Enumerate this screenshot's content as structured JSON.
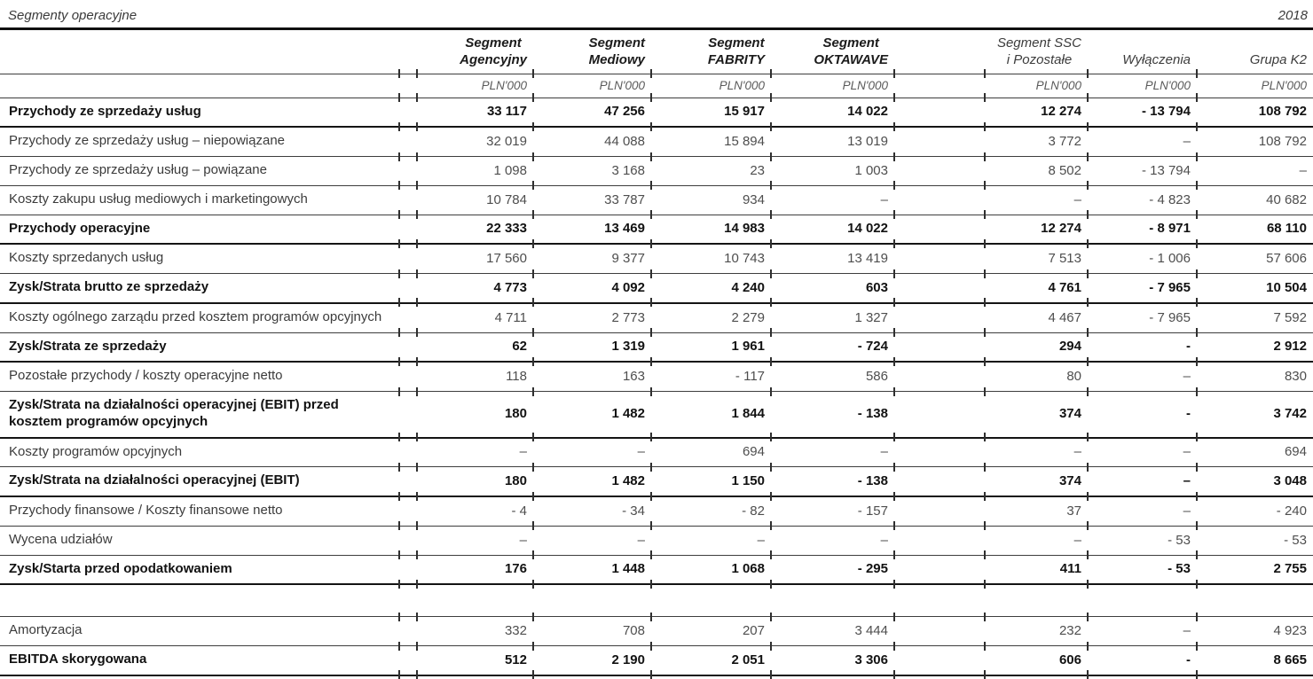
{
  "meta": {
    "title": "Segmenty operacyjne",
    "year": "2018"
  },
  "table": {
    "columns": [
      {
        "label": "Segment\nAgencyjny",
        "unit": "PLN'000"
      },
      {
        "label": "Segment\nMediowy",
        "unit": "PLN'000"
      },
      {
        "label": "Segment\nFABRITY",
        "unit": "PLN'000"
      },
      {
        "label": "Segment\nOKTAWAVE",
        "unit": "PLN'000"
      },
      {
        "label": "Segment SSC\ni Pozostałe",
        "unit": "PLN'000"
      },
      {
        "label": "Wyłączenia",
        "unit": "PLN'000"
      },
      {
        "label": "Grupa K2",
        "unit": "PLN'000"
      }
    ],
    "rows": [
      {
        "label": "Przychody ze sprzedaży usług",
        "bold": true,
        "values": [
          "33 117",
          "47 256",
          "15 917",
          "14 022",
          "12 274",
          "- 13 794",
          "108 792"
        ]
      },
      {
        "label": "Przychody ze sprzedaży usług – niepowiązane",
        "bold": false,
        "values": [
          "32 019",
          "44 088",
          "15 894",
          "13 019",
          "3 772",
          "–",
          "108 792"
        ]
      },
      {
        "label": "Przychody ze sprzedaży usług – powiązane",
        "bold": false,
        "values": [
          "1 098",
          "3 168",
          "23",
          "1 003",
          "8 502",
          "- 13 794",
          "–"
        ]
      },
      {
        "label": "Koszty zakupu usług mediowych i marketingowych",
        "bold": false,
        "values": [
          "10 784",
          "33 787",
          "934",
          "–",
          "–",
          "- 4 823",
          "40 682"
        ]
      },
      {
        "label": "Przychody operacyjne",
        "bold": true,
        "values": [
          "22 333",
          "13 469",
          "14 983",
          "14 022",
          "12 274",
          "- 8 971",
          "68 110"
        ]
      },
      {
        "label": "Koszty sprzedanych usług",
        "bold": false,
        "values": [
          "17 560",
          "9 377",
          "10 743",
          "13 419",
          "7 513",
          "- 1 006",
          "57 606"
        ]
      },
      {
        "label": "Zysk/Strata brutto ze sprzedaży",
        "bold": true,
        "values": [
          "4 773",
          "4 092",
          "4 240",
          "603",
          "4 761",
          "- 7 965",
          "10 504"
        ]
      },
      {
        "label": "Koszty ogólnego zarządu przed kosztem programów opcyjnych",
        "bold": false,
        "values": [
          "4 711",
          "2 773",
          "2 279",
          "1 327",
          "4 467",
          "- 7 965",
          "7 592"
        ]
      },
      {
        "label": "Zysk/Strata ze sprzedaży",
        "bold": true,
        "values": [
          "62",
          "1 319",
          "1 961",
          "- 724",
          "294",
          "-",
          "2 912"
        ]
      },
      {
        "label": "Pozostałe przychody / koszty operacyjne netto",
        "bold": false,
        "values": [
          "118",
          "163",
          "- 117",
          "586",
          "80",
          "–",
          "830"
        ]
      },
      {
        "label": "Zysk/Strata na działalności operacyjnej (EBIT) przed kosztem programów opcyjnych",
        "bold": true,
        "values": [
          "180",
          "1 482",
          "1 844",
          "- 138",
          "374",
          "-",
          "3 742"
        ]
      },
      {
        "label": "Koszty programów opcyjnych",
        "bold": false,
        "values": [
          "–",
          "–",
          "694",
          "–",
          "–",
          "–",
          "694"
        ]
      },
      {
        "label": "Zysk/Strata na działalności operacyjnej (EBIT)",
        "bold": true,
        "values": [
          "180",
          "1 482",
          "1 150",
          "- 138",
          "374",
          "–",
          "3 048"
        ]
      },
      {
        "label": "Przychody finansowe / Koszty finansowe netto",
        "bold": false,
        "values": [
          "- 4",
          "- 34",
          "- 82",
          "- 157",
          "37",
          "–",
          "- 240"
        ]
      },
      {
        "label": "Wycena udziałów",
        "bold": false,
        "values": [
          "–",
          "–",
          "–",
          "–",
          "–",
          "- 53",
          "- 53"
        ]
      },
      {
        "label": "Zysk/Starta przed opodatkowaniem",
        "bold": true,
        "values": [
          "176",
          "1 448",
          "1 068",
          "- 295",
          "411",
          "- 53",
          "2 755"
        ]
      },
      {
        "label": "",
        "bold": false,
        "spacer": true,
        "values": [
          "",
          "",
          "",
          "",
          "",
          "",
          ""
        ]
      },
      {
        "label": "Amortyzacja",
        "bold": false,
        "values": [
          "332",
          "708",
          "207",
          "3 444",
          "232",
          "–",
          "4 923"
        ]
      },
      {
        "label": "EBITDA skorygowana",
        "bold": true,
        "values": [
          "512",
          "2 190",
          "2 051",
          "3 306",
          "606",
          "-",
          "8 665"
        ]
      }
    ]
  }
}
